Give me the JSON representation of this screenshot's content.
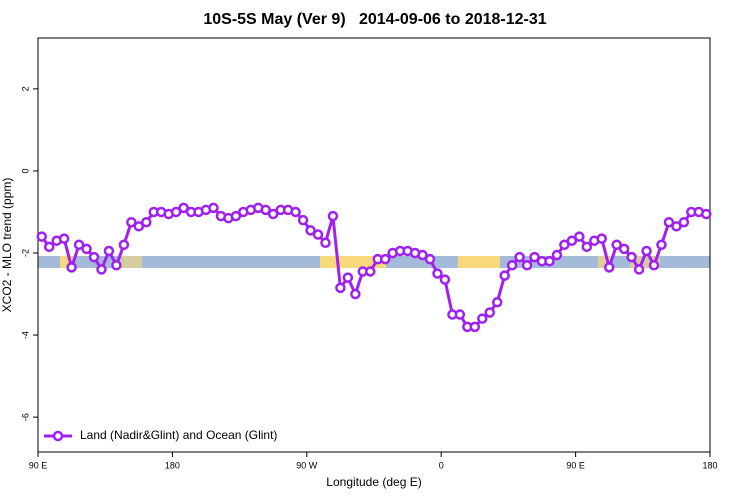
{
  "chart_data": {
    "type": "line",
    "title": "10S-5S May (Ver 9)   2014-09-06 to 2018-12-31",
    "xlabel": "Longitude (deg E)",
    "ylabel": "XCO2 - MLO trend (ppm)",
    "xlim": [
      90,
      540
    ],
    "ylim": [
      -6.85,
      3.24
    ],
    "xticks": [
      {
        "value": 90,
        "label": "90 E"
      },
      180,
      {
        "value": 270,
        "label": "90 W"
      },
      {
        "value": 360,
        "label": "0"
      },
      {
        "value": 450,
        "label": "90 E"
      },
      {
        "value": 540,
        "label": "180"
      }
    ],
    "yticks": [
      2,
      0,
      -2,
      -4,
      -6
    ],
    "legend": "bottom-left",
    "x": [
      92.5,
      97.5,
      102.5,
      107.5,
      112.5,
      117.5,
      122.5,
      127.5,
      132.5,
      137.5,
      142.5,
      147.5,
      152.5,
      157.5,
      162.5,
      167.5,
      172.5,
      177.5,
      182.5,
      187.5,
      192.5,
      197.5,
      202.5,
      207.5,
      212.5,
      217.5,
      222.5,
      227.5,
      232.5,
      237.5,
      242.5,
      247.5,
      252.5,
      257.5,
      262.5,
      267.5,
      272.5,
      277.5,
      282.5,
      287.5,
      292.5,
      297.5,
      302.5,
      307.5,
      312.5,
      317.5,
      322.5,
      327.5,
      332.5,
      337.5,
      342.5,
      347.5,
      352.5,
      357.5,
      362.5,
      367.5,
      372.5,
      377.5,
      382.5,
      387.5,
      392.5,
      397.5,
      402.5,
      407.5,
      412.5,
      417.5,
      422.5,
      427.5,
      432.5,
      437.5,
      442.5,
      447.5,
      452.5,
      457.5,
      462.5,
      467.5,
      472.5,
      477.5,
      482.5,
      487.5,
      492.5,
      497.5,
      502.5,
      507.5,
      512.5,
      517.5,
      522.5,
      527.5,
      532.5,
      537.5
    ],
    "series": [
      {
        "name": "Land (Nadir&Glint) and Ocean (Glint)",
        "color": "#a020f0",
        "values": [
          -1.6,
          -1.85,
          -1.7,
          -1.65,
          -2.35,
          -1.8,
          -1.9,
          -2.1,
          -2.4,
          -1.95,
          -2.3,
          -1.8,
          -1.25,
          -1.35,
          -1.25,
          -1.0,
          -1.0,
          -1.05,
          -1.0,
          -0.9,
          -1.0,
          -1.0,
          -0.95,
          -0.9,
          -1.1,
          -1.15,
          -1.1,
          -1.0,
          -0.95,
          -0.9,
          -0.95,
          -1.05,
          -0.95,
          -0.95,
          -1.0,
          -1.2,
          -1.45,
          -1.55,
          -1.75,
          -1.1,
          -2.85,
          -2.6,
          -3.0,
          -2.45,
          -2.45,
          -2.15,
          -2.15,
          -2.0,
          -1.95,
          -1.95,
          -2.0,
          -2.05,
          -2.15,
          -2.5,
          -2.65,
          -3.5,
          -3.5,
          -3.8,
          -3.8,
          -3.6,
          -3.45,
          -3.2,
          -2.55,
          -2.3,
          -2.1,
          -2.3,
          -2.1,
          -2.2,
          -2.2,
          -2.05,
          -1.8,
          -1.7,
          -1.6,
          -1.85,
          -1.7,
          -1.65,
          -2.35,
          -1.8,
          -1.9,
          -2.1,
          -2.4,
          -1.95,
          -2.3,
          -1.8,
          -1.25,
          -1.35,
          -1.25,
          -1.0,
          -1.0,
          -1.05
        ]
      }
    ]
  }
}
